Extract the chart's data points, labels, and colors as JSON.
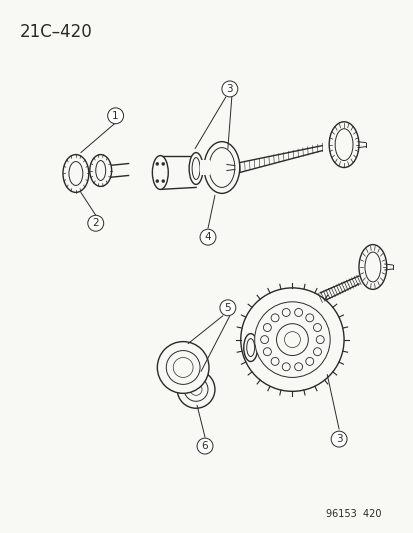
{
  "title": "21C–420",
  "ref_number": "96153  420",
  "bg_color": "#f8f8f5",
  "line_color": "#2a2a2a",
  "figsize": [
    4.14,
    5.33
  ],
  "dpi": 100,
  "title_fontsize": 12,
  "callout_fontsize": 7.5,
  "ref_fontsize": 7
}
